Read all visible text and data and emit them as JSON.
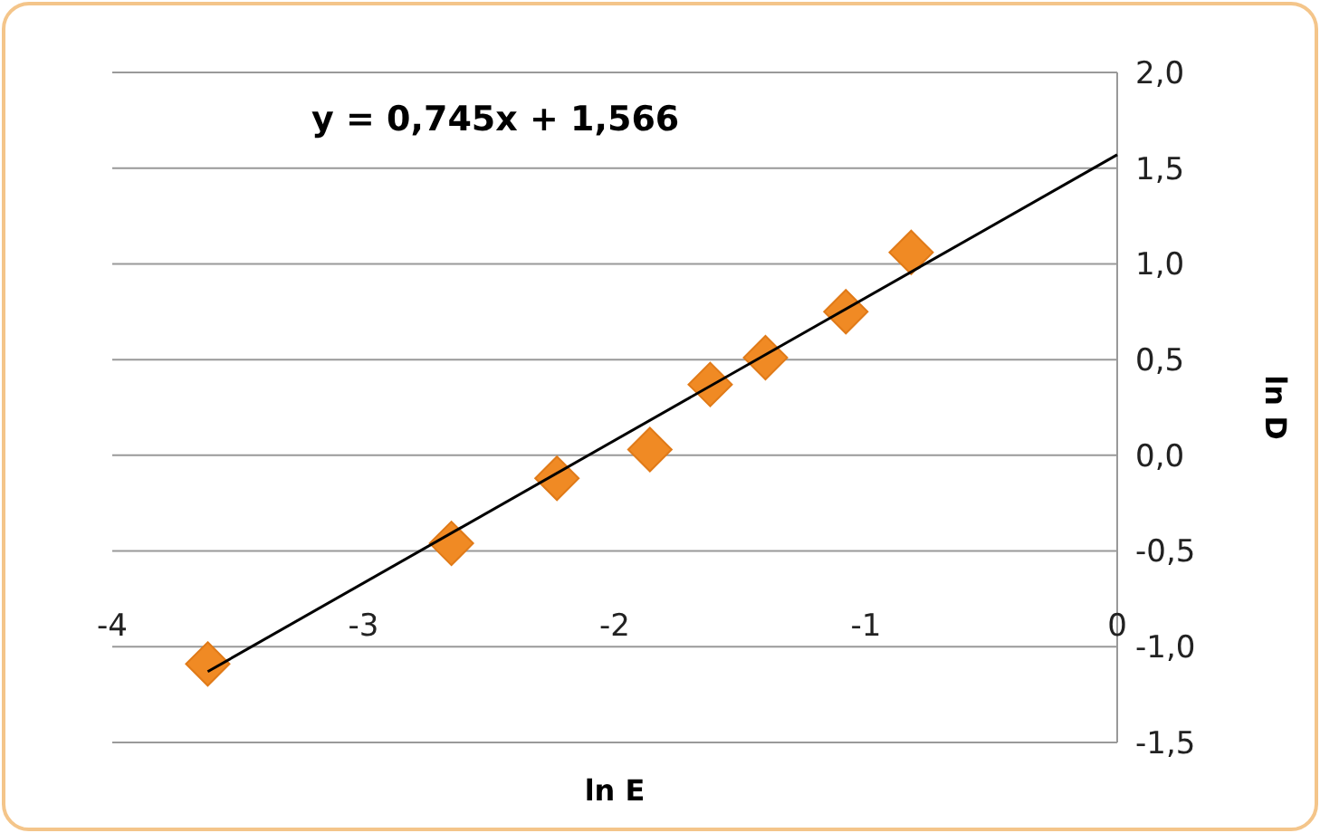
{
  "chart_data": {
    "type": "scatter",
    "xlabel": "ln E",
    "ylabel": "ln D",
    "annotations": [
      "y = 0,745x + 1,566"
    ],
    "grid": "y",
    "xlim": [
      -4,
      0
    ],
    "ylim": [
      -1.5,
      2.0
    ],
    "xticks": [
      -4,
      -3,
      -2,
      -1,
      0
    ],
    "yticks": [
      {
        "value": -1.5,
        "label": "-1,5"
      },
      {
        "value": -1.0,
        "label": "-1,0"
      },
      {
        "value": -0.5,
        "label": "-0,5"
      },
      {
        "value": 0,
        "label": "0,0"
      },
      {
        "value": 0.5,
        "label": "0,5"
      },
      {
        "value": 1.0,
        "label": "1,0"
      },
      {
        "value": 1.5,
        "label": "1,5"
      },
      {
        "value": 2.0,
        "label": "2,0"
      }
    ],
    "series": [
      {
        "color": "#f08a24",
        "marker": "diamond",
        "x": [
          -3.62,
          -2.65,
          -2.23,
          -1.86,
          -1.62,
          -1.4,
          -1.08,
          -0.82
        ],
        "values": [
          -1.09,
          -0.46,
          -0.12,
          0.03,
          0.37,
          0.51,
          0.75,
          1.06
        ]
      },
      {
        "type": "line",
        "color": "#000000",
        "marker": "none",
        "x": [
          -3.62,
          0
        ],
        "values": [
          -1.13,
          1.57
        ]
      }
    ]
  }
}
